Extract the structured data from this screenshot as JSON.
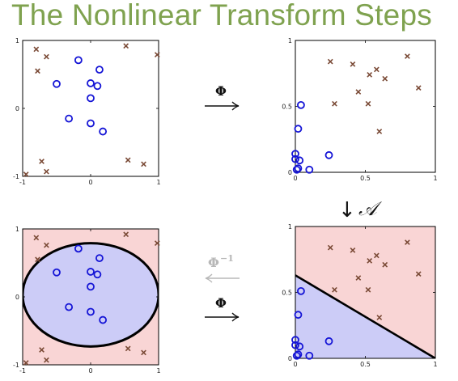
{
  "title": "The Nonlinear Transform Steps",
  "colors": {
    "title": "#7fa24f",
    "circle_marker": "#1515d6",
    "cross_marker": "#7a4a36",
    "region_red": "#f9d5d5",
    "region_blue": "#ccccf7",
    "boundary": "#000000",
    "faded_arrow": "#b8b8b8"
  },
  "arrows": {
    "top_phi": "Φ",
    "down_symbol": "↓",
    "down_label": "𝒜",
    "back_phi": "Φ",
    "back_phi_sup": "−1",
    "bottom_phi": "Φ"
  },
  "chart_data": [
    {
      "type": "scatter",
      "panel": "top-left",
      "xlim": [
        -1,
        1
      ],
      "ylim": [
        -1,
        1
      ],
      "xticks": [
        "-1",
        "0",
        "1"
      ],
      "yticks": [
        "-1",
        "0",
        "1"
      ],
      "series": [
        {
          "marker": "o",
          "x": [
            -0.18,
            0.13,
            -0.5,
            0.0,
            0.1,
            0.0,
            -0.32,
            0.0,
            0.18
          ],
          "y": [
            0.71,
            0.57,
            0.36,
            0.37,
            0.33,
            0.15,
            -0.15,
            -0.22,
            -0.34
          ]
        },
        {
          "marker": "x",
          "x": [
            -0.8,
            -0.65,
            -0.78,
            0.52,
            0.98,
            -0.95,
            -0.72,
            -0.65,
            0.55,
            0.78
          ],
          "y": [
            0.87,
            0.76,
            0.55,
            0.92,
            0.79,
            -0.97,
            -0.78,
            -0.93,
            -0.76,
            -0.82
          ]
        }
      ]
    },
    {
      "type": "scatter",
      "panel": "top-right",
      "xlim": [
        0,
        1
      ],
      "ylim": [
        0,
        1
      ],
      "xticks": [
        "0",
        "0.5",
        "1"
      ],
      "yticks": [
        "0",
        "0.5",
        "1"
      ],
      "series": [
        {
          "marker": "o",
          "x": [
            0.04,
            0.02,
            0.0,
            0.03,
            0.0,
            0.01,
            0.1,
            0.24,
            0.02
          ],
          "y": [
            0.51,
            0.33,
            0.14,
            0.09,
            0.1,
            0.02,
            0.02,
            0.13,
            0.03
          ]
        },
        {
          "marker": "x",
          "x": [
            0.25,
            0.41,
            0.53,
            0.58,
            0.64,
            0.8,
            0.88,
            0.45,
            0.52,
            0.28,
            0.6
          ],
          "y": [
            0.84,
            0.82,
            0.74,
            0.78,
            0.71,
            0.88,
            0.64,
            0.61,
            0.52,
            0.52,
            0.31
          ]
        }
      ]
    },
    {
      "type": "scatter",
      "panel": "bottom-left",
      "xlim": [
        -1,
        1
      ],
      "ylim": [
        -1,
        1
      ],
      "xticks": [
        "-1",
        "0",
        "1"
      ],
      "yticks": [
        "-1",
        "0",
        "1"
      ],
      "boundary": "ellipse",
      "series": [
        {
          "marker": "o",
          "x": [
            -0.18,
            0.13,
            -0.5,
            0.0,
            0.1,
            0.0,
            -0.32,
            0.0,
            0.18
          ],
          "y": [
            0.71,
            0.57,
            0.36,
            0.37,
            0.33,
            0.15,
            -0.15,
            -0.22,
            -0.34
          ]
        },
        {
          "marker": "x",
          "x": [
            -0.8,
            -0.65,
            -0.78,
            0.52,
            0.98,
            -0.95,
            -0.72,
            -0.65,
            0.55,
            0.78
          ],
          "y": [
            0.87,
            0.76,
            0.55,
            0.92,
            0.79,
            -0.97,
            -0.78,
            -0.93,
            -0.76,
            -0.82
          ]
        }
      ]
    },
    {
      "type": "scatter",
      "panel": "bottom-right",
      "xlim": [
        0,
        1
      ],
      "ylim": [
        0,
        1
      ],
      "xticks": [
        "0",
        "0.5",
        "1"
      ],
      "yticks": [
        "0",
        "0.5",
        "1"
      ],
      "boundary": "line",
      "boundary_line": {
        "x": [
          0,
          1
        ],
        "y": [
          0.63,
          0.0
        ]
      },
      "series": [
        {
          "marker": "o",
          "x": [
            0.04,
            0.02,
            0.0,
            0.03,
            0.0,
            0.01,
            0.1,
            0.24,
            0.02
          ],
          "y": [
            0.51,
            0.33,
            0.14,
            0.09,
            0.1,
            0.02,
            0.02,
            0.13,
            0.03
          ]
        },
        {
          "marker": "x",
          "x": [
            0.25,
            0.41,
            0.53,
            0.58,
            0.64,
            0.8,
            0.88,
            0.45,
            0.52,
            0.28,
            0.6
          ],
          "y": [
            0.84,
            0.82,
            0.74,
            0.78,
            0.71,
            0.88,
            0.64,
            0.61,
            0.52,
            0.52,
            0.31
          ]
        }
      ]
    }
  ]
}
